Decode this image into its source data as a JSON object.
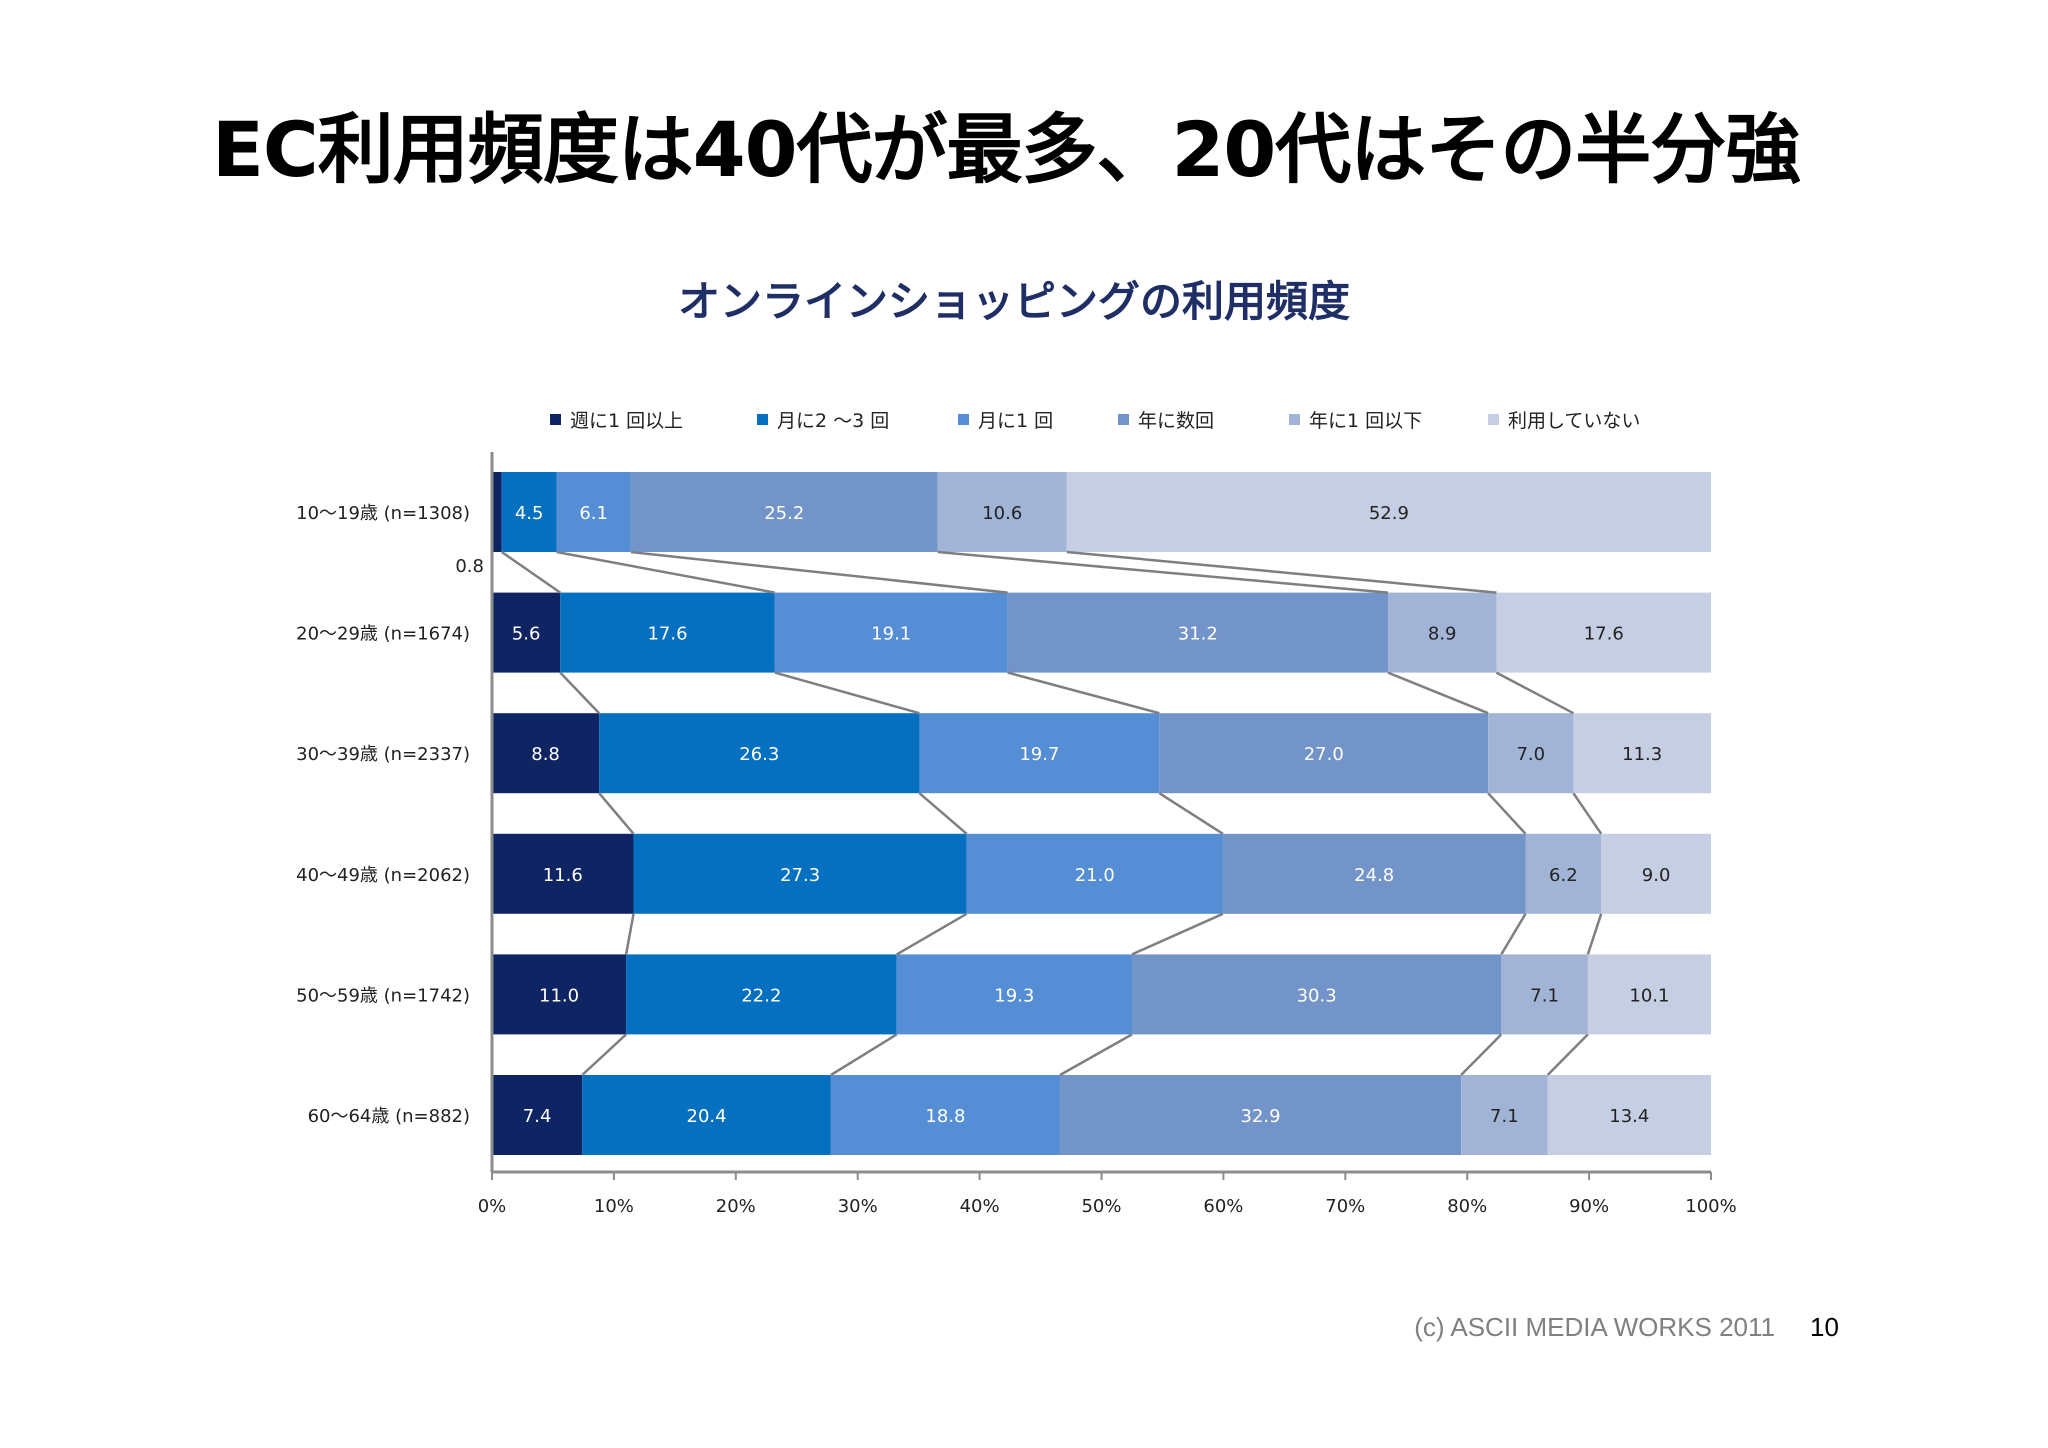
{
  "slide": {
    "title": "EC利用頻度は40代が最多、20代はその半分強",
    "footer_copyright": "(c) ASCII MEDIA WORKS 2011",
    "page_number": "10"
  },
  "chart_data": {
    "type": "bar",
    "orientation": "horizontal",
    "stacked": "percent",
    "title": "オンラインショッピングの利用頻度",
    "legend_position": "top",
    "categories": [
      "10〜19歳 (n=1308)",
      "20〜29歳 (n=1674)",
      "30〜39歳 (n=2337)",
      "40〜49歳 (n=2062)",
      "50〜59歳 (n=1742)",
      "60〜64歳 (n=882)"
    ],
    "series": [
      {
        "name": "週に1 回以上",
        "color": "#0F2462",
        "values": [
          0.8,
          5.6,
          8.8,
          11.6,
          11.0,
          7.4
        ]
      },
      {
        "name": "月に2 〜3 回",
        "color": "#0670C0",
        "values": [
          4.5,
          17.6,
          26.3,
          27.3,
          22.2,
          20.4
        ]
      },
      {
        "name": "月に1 回",
        "color": "#558ED5",
        "values": [
          6.1,
          19.1,
          19.7,
          21.0,
          19.3,
          18.8
        ]
      },
      {
        "name": "年に数回",
        "color": "#7394C8",
        "values": [
          25.2,
          31.2,
          27.0,
          24.8,
          30.3,
          32.9
        ]
      },
      {
        "name": "年に1 回以下",
        "color": "#A2B4D6",
        "values": [
          10.6,
          8.9,
          7.0,
          6.2,
          7.1,
          7.1
        ]
      },
      {
        "name": "利用していない",
        "color": "#C5CEE2",
        "values": [
          52.9,
          17.6,
          11.3,
          9.0,
          10.1,
          13.4
        ]
      }
    ],
    "xlim": [
      0,
      100
    ],
    "x_ticks": [
      "0%",
      "10%",
      "20%",
      "30%",
      "40%",
      "50%",
      "60%",
      "70%",
      "80%",
      "90%",
      "100%"
    ],
    "series_lines": true,
    "label_text_color": "#ffffff",
    "dark_label_series": [
      "年に1 回以下",
      "利用していない"
    ],
    "grid": false
  }
}
